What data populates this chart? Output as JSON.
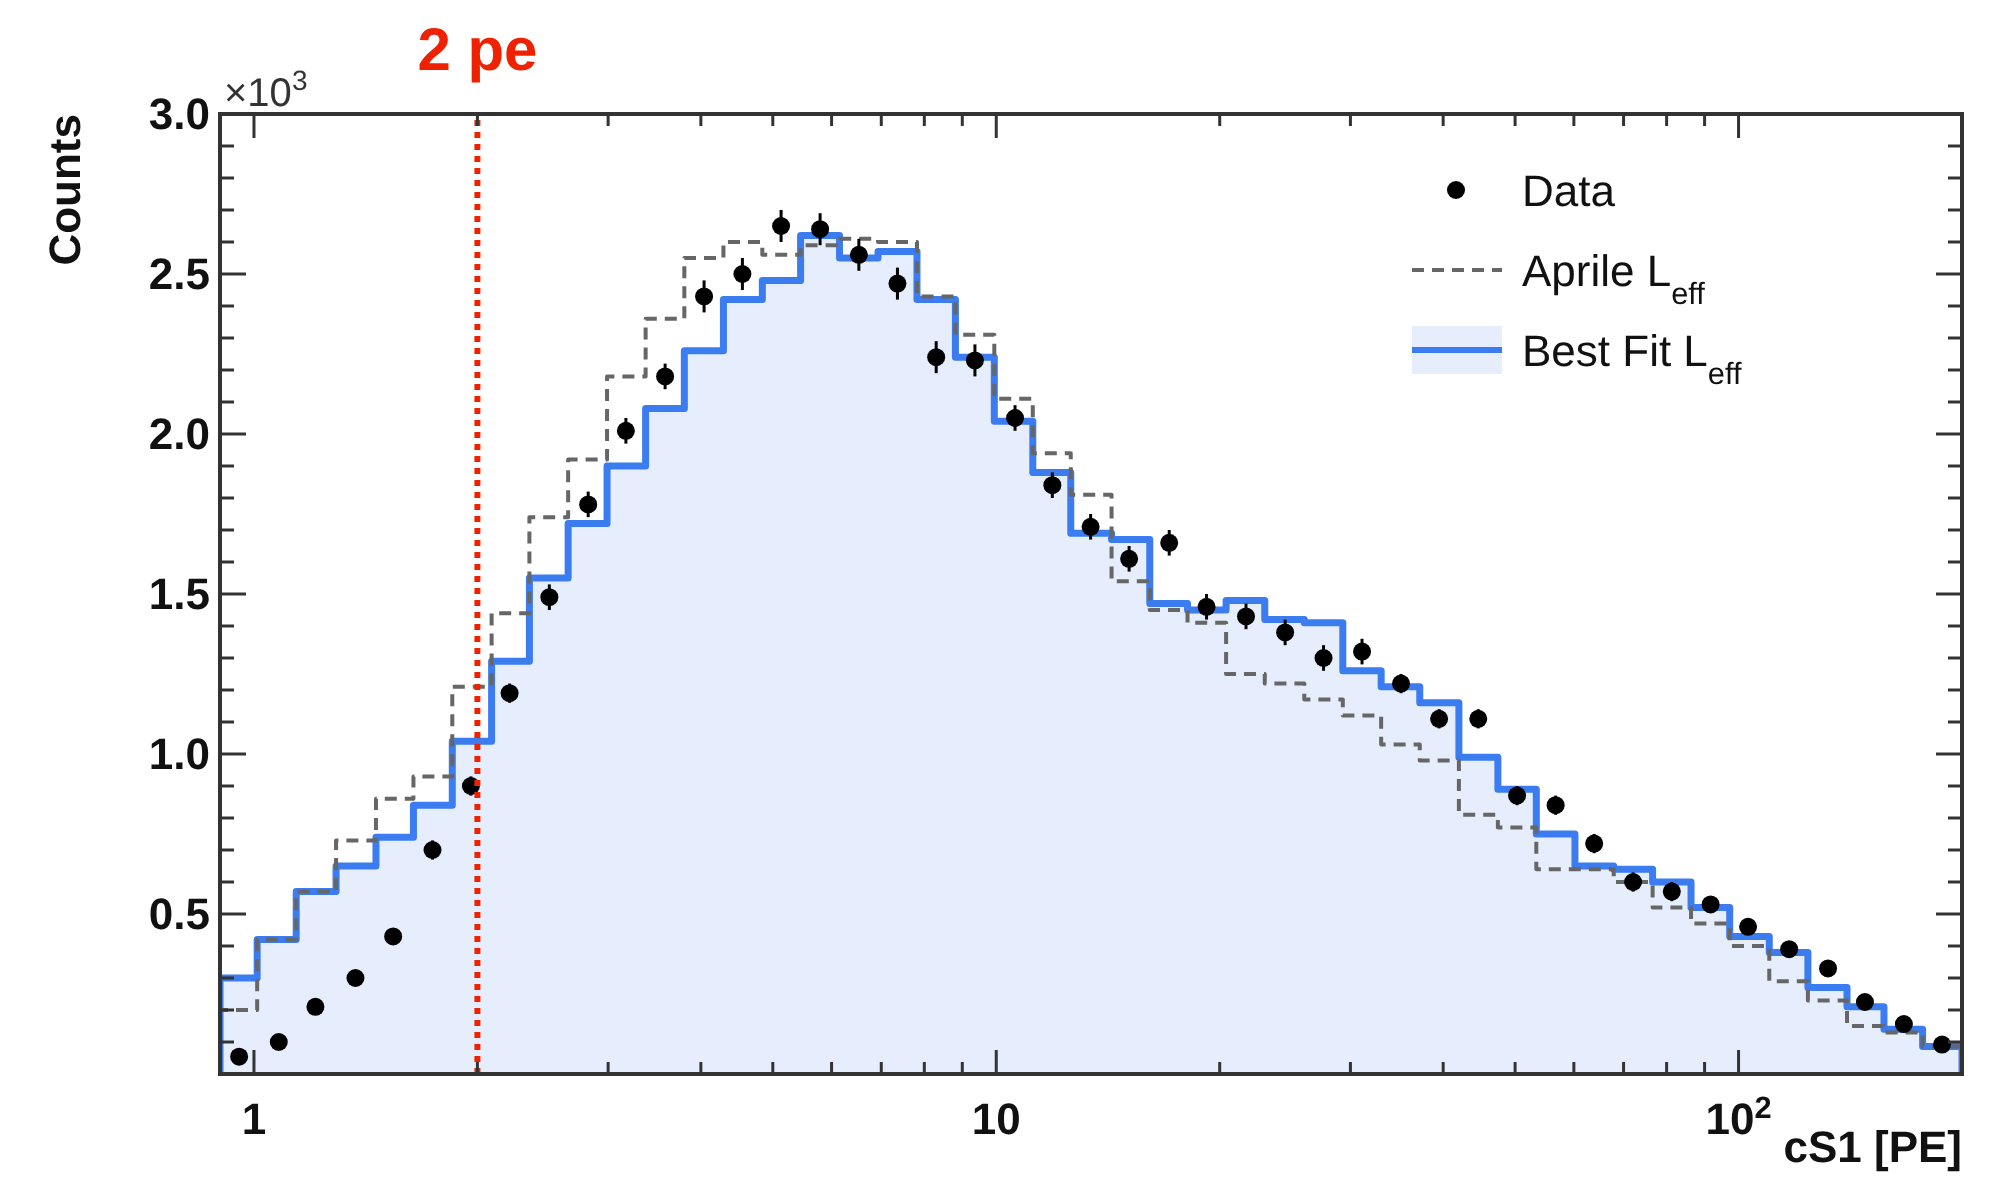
{
  "chart_data": {
    "type": "histogram",
    "xlabel": "cS1 [PE]",
    "ylabel": "Counts",
    "annotations": [
      "×10$^{3}$"
    ],
    "log": "x",
    "legend": "top right",
    "grid": false,
    "xlim": [
      0.9,
      200
    ],
    "ylim": [
      0,
      3
    ],
    "xticks": [
      1,
      {
        "value": 2,
        "label": null
      },
      {
        "value": 3,
        "label": null
      },
      {
        "value": 4,
        "label": null
      },
      {
        "value": 5,
        "label": null
      },
      {
        "value": 6,
        "label": null
      },
      {
        "value": 7,
        "label": null
      },
      {
        "value": 8,
        "label": null
      },
      {
        "value": 9,
        "label": null
      },
      10,
      {
        "value": 20,
        "label": null
      },
      {
        "value": 30,
        "label": null
      },
      {
        "value": 40,
        "label": null
      },
      {
        "value": 50,
        "label": null
      },
      {
        "value": 60,
        "label": null
      },
      {
        "value": 70,
        "label": null
      },
      {
        "value": 80,
        "label": null
      },
      {
        "value": 90,
        "label": null
      },
      {
        "value": 100,
        "label": "10$^{2}$"
      },
      {
        "value": 200,
        "label": null
      }
    ],
    "yticks": [
      {
        "value": 0.1,
        "label": null
      },
      {
        "value": 0.2,
        "label": null
      },
      {
        "value": 0.3,
        "label": null
      },
      {
        "value": 0.4,
        "label": null
      },
      0.5,
      {
        "value": 0.6,
        "label": null
      },
      {
        "value": 0.7,
        "label": null
      },
      {
        "value": 0.8,
        "label": null
      },
      {
        "value": 0.9,
        "label": null
      },
      {
        "value": 1,
        "label": "1.0"
      },
      {
        "value": 1.1,
        "label": null
      },
      {
        "value": 1.2,
        "label": null
      },
      {
        "value": 1.3,
        "label": null
      },
      {
        "value": 1.4,
        "label": null
      },
      1.5,
      {
        "value": 1.6,
        "label": null
      },
      {
        "value": 1.7,
        "label": null
      },
      {
        "value": 1.8,
        "label": null
      },
      {
        "value": 1.9,
        "label": null
      },
      {
        "value": 2,
        "label": "2.0"
      },
      {
        "value": 2.1,
        "label": null
      },
      {
        "value": 2.2,
        "label": null
      },
      {
        "value": 2.3,
        "label": null
      },
      {
        "value": 2.4,
        "label": null
      },
      2.5,
      {
        "value": 2.6,
        "label": null
      },
      {
        "value": 2.7,
        "label": null
      },
      {
        "value": 2.8,
        "label": null
      },
      {
        "value": 2.9,
        "label": null
      },
      {
        "value": 3,
        "label": "3.0"
      }
    ],
    "bins": [
      0.9,
      1.01,
      1.14,
      1.29,
      1.46,
      1.64,
      1.85,
      2.09,
      2.35,
      2.65,
      2.99,
      3.37,
      3.8,
      4.29,
      4.84,
      5.45,
      6.15,
      6.93,
      7.82,
      8.81,
      9.94,
      11.2,
      12.6,
      14.3,
      16.1,
      18.1,
      20.4,
      23,
      26,
      29.3,
      33,
      37.2,
      42,
      47.4,
      53.4,
      60.2,
      67.9,
      76.6,
      86.3,
      97.3,
      110,
      124,
      140,
      157,
      177,
      200
    ],
    "ref_lines": [
      {
        "axis": "x",
        "value": 2,
        "label": "2 pe",
        "color": "#ee2200",
        "line_style": "dotted"
      }
    ],
    "series": [
      {
        "name": "Best Fit L$_{eff}$",
        "type": "histogram",
        "color": "#3b7cf0",
        "values": [
          0.3,
          0.42,
          0.57,
          0.65,
          0.74,
          0.84,
          1.04,
          1.29,
          1.55,
          1.72,
          1.9,
          2.08,
          2.26,
          2.42,
          2.48,
          2.62,
          2.55,
          2.57,
          2.42,
          2.24,
          2.04,
          1.88,
          1.69,
          1.67,
          1.47,
          1.45,
          1.48,
          1.42,
          1.41,
          1.26,
          1.21,
          1.16,
          0.99,
          0.89,
          0.75,
          0.65,
          0.64,
          0.6,
          0.52,
          0.43,
          0.38,
          0.27,
          0.21,
          0.14,
          0.086
        ]
      },
      {
        "name": "Aprile L$_{eff}$",
        "type": "histogram",
        "color": "#666666",
        "line_style": "dashed",
        "values": [
          0.2,
          0.42,
          0.57,
          0.73,
          0.86,
          0.93,
          1.21,
          1.44,
          1.74,
          1.92,
          2.18,
          2.36,
          2.55,
          2.6,
          2.56,
          2.59,
          2.61,
          2.6,
          2.43,
          2.31,
          2.11,
          1.94,
          1.81,
          1.54,
          1.45,
          1.41,
          1.25,
          1.22,
          1.17,
          1.12,
          1.03,
          0.98,
          0.81,
          0.77,
          0.64,
          0.64,
          0.6,
          0.52,
          0.47,
          0.4,
          0.29,
          0.23,
          0.15,
          0.13,
          0.086
        ]
      },
      {
        "name": "Data",
        "type": "scatter",
        "color": "#000000",
        "marker": "circle",
        "x": [
          0.955,
          1.08,
          1.21,
          1.37,
          1.54,
          1.74,
          1.96,
          2.21,
          2.5,
          2.82,
          3.17,
          3.58,
          4.04,
          4.55,
          5.13,
          5.79,
          6.53,
          7.36,
          8.3,
          9.36,
          10.6,
          11.9,
          13.4,
          15.1,
          17.1,
          19.2,
          21.7,
          24.5,
          27.6,
          31.1,
          35.1,
          39.5,
          44.6,
          50.3,
          56.7,
          63.9,
          72.1,
          81.3,
          91.7,
          103,
          117,
          132,
          148,
          167,
          188
        ],
        "values": [
          0.054,
          0.1,
          0.21,
          0.3,
          0.43,
          0.7,
          0.9,
          1.19,
          1.49,
          1.78,
          2.01,
          2.18,
          2.43,
          2.5,
          2.65,
          2.64,
          2.56,
          2.47,
          2.24,
          2.23,
          2.05,
          1.84,
          1.71,
          1.61,
          1.66,
          1.46,
          1.43,
          1.38,
          1.3,
          1.32,
          1.22,
          1.11,
          1.11,
          0.87,
          0.84,
          0.72,
          0.6,
          0.57,
          0.53,
          0.46,
          0.39,
          0.33,
          0.225,
          0.156,
          0.092
        ],
        "errors": [
          0.02,
          0.02,
          0.02,
          0.02,
          0.02,
          0.03,
          0.03,
          0.03,
          0.04,
          0.04,
          0.04,
          0.04,
          0.05,
          0.05,
          0.05,
          0.05,
          0.05,
          0.05,
          0.05,
          0.05,
          0.04,
          0.04,
          0.04,
          0.04,
          0.04,
          0.04,
          0.04,
          0.04,
          0.04,
          0.04,
          0.03,
          0.03,
          0.03,
          0.03,
          0.03,
          0.03,
          0.03,
          0.03,
          0.02,
          0.02,
          0.02,
          0.02,
          0.02,
          0.02,
          0.02
        ]
      }
    ]
  }
}
